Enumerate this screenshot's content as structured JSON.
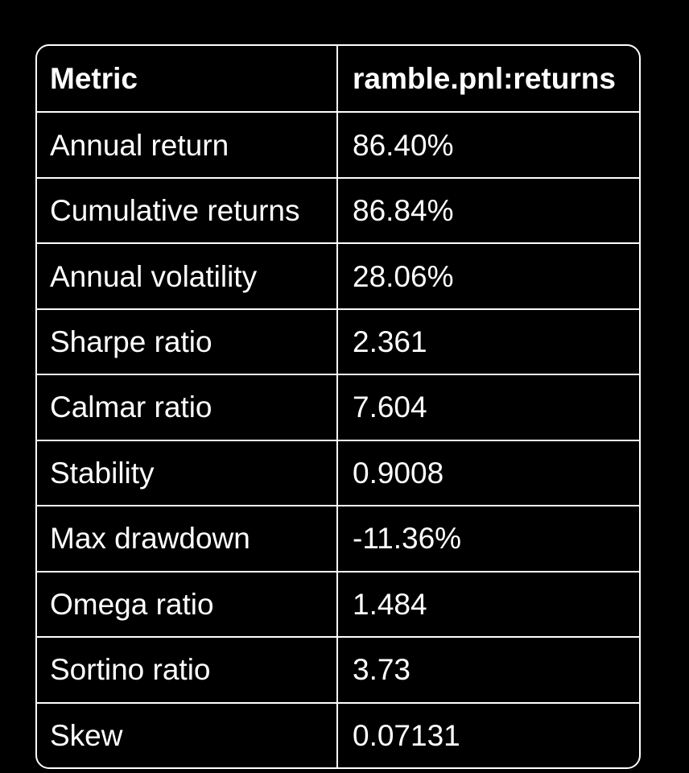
{
  "table": {
    "header": {
      "metric": "Metric",
      "series": "ramble.pnl:returns"
    },
    "rows": [
      {
        "metric": "Annual return",
        "value": "86.40%"
      },
      {
        "metric": "Cumulative returns",
        "value": "86.84%"
      },
      {
        "metric": "Annual volatility",
        "value": "28.06%"
      },
      {
        "metric": "Sharpe ratio",
        "value": "2.361"
      },
      {
        "metric": "Calmar ratio",
        "value": "7.604"
      },
      {
        "metric": "Stability",
        "value": "0.9008"
      },
      {
        "metric": "Max drawdown",
        "value": "-11.36%"
      },
      {
        "metric": "Omega ratio",
        "value": "1.484"
      },
      {
        "metric": "Sortino ratio",
        "value": "3.73"
      },
      {
        "metric": "Skew",
        "value": "0.07131"
      }
    ]
  },
  "colors": {
    "background": "#000000",
    "text": "#ffffff",
    "border": "#ffffff"
  },
  "chart_data": {
    "type": "table",
    "title": "",
    "columns": [
      "Metric",
      "ramble.pnl:returns"
    ],
    "rows": [
      [
        "Annual return",
        "86.40%"
      ],
      [
        "Cumulative returns",
        "86.84%"
      ],
      [
        "Annual volatility",
        "28.06%"
      ],
      [
        "Sharpe ratio",
        "2.361"
      ],
      [
        "Calmar ratio",
        "7.604"
      ],
      [
        "Stability",
        "0.9008"
      ],
      [
        "Max drawdown",
        "-11.36%"
      ],
      [
        "Omega ratio",
        "1.484"
      ],
      [
        "Sortino ratio",
        "3.73"
      ],
      [
        "Skew",
        "0.07131"
      ]
    ],
    "layout_hints": {
      "theme": "dark",
      "grid": "on",
      "header_bold": true,
      "rounded_border": true
    }
  }
}
